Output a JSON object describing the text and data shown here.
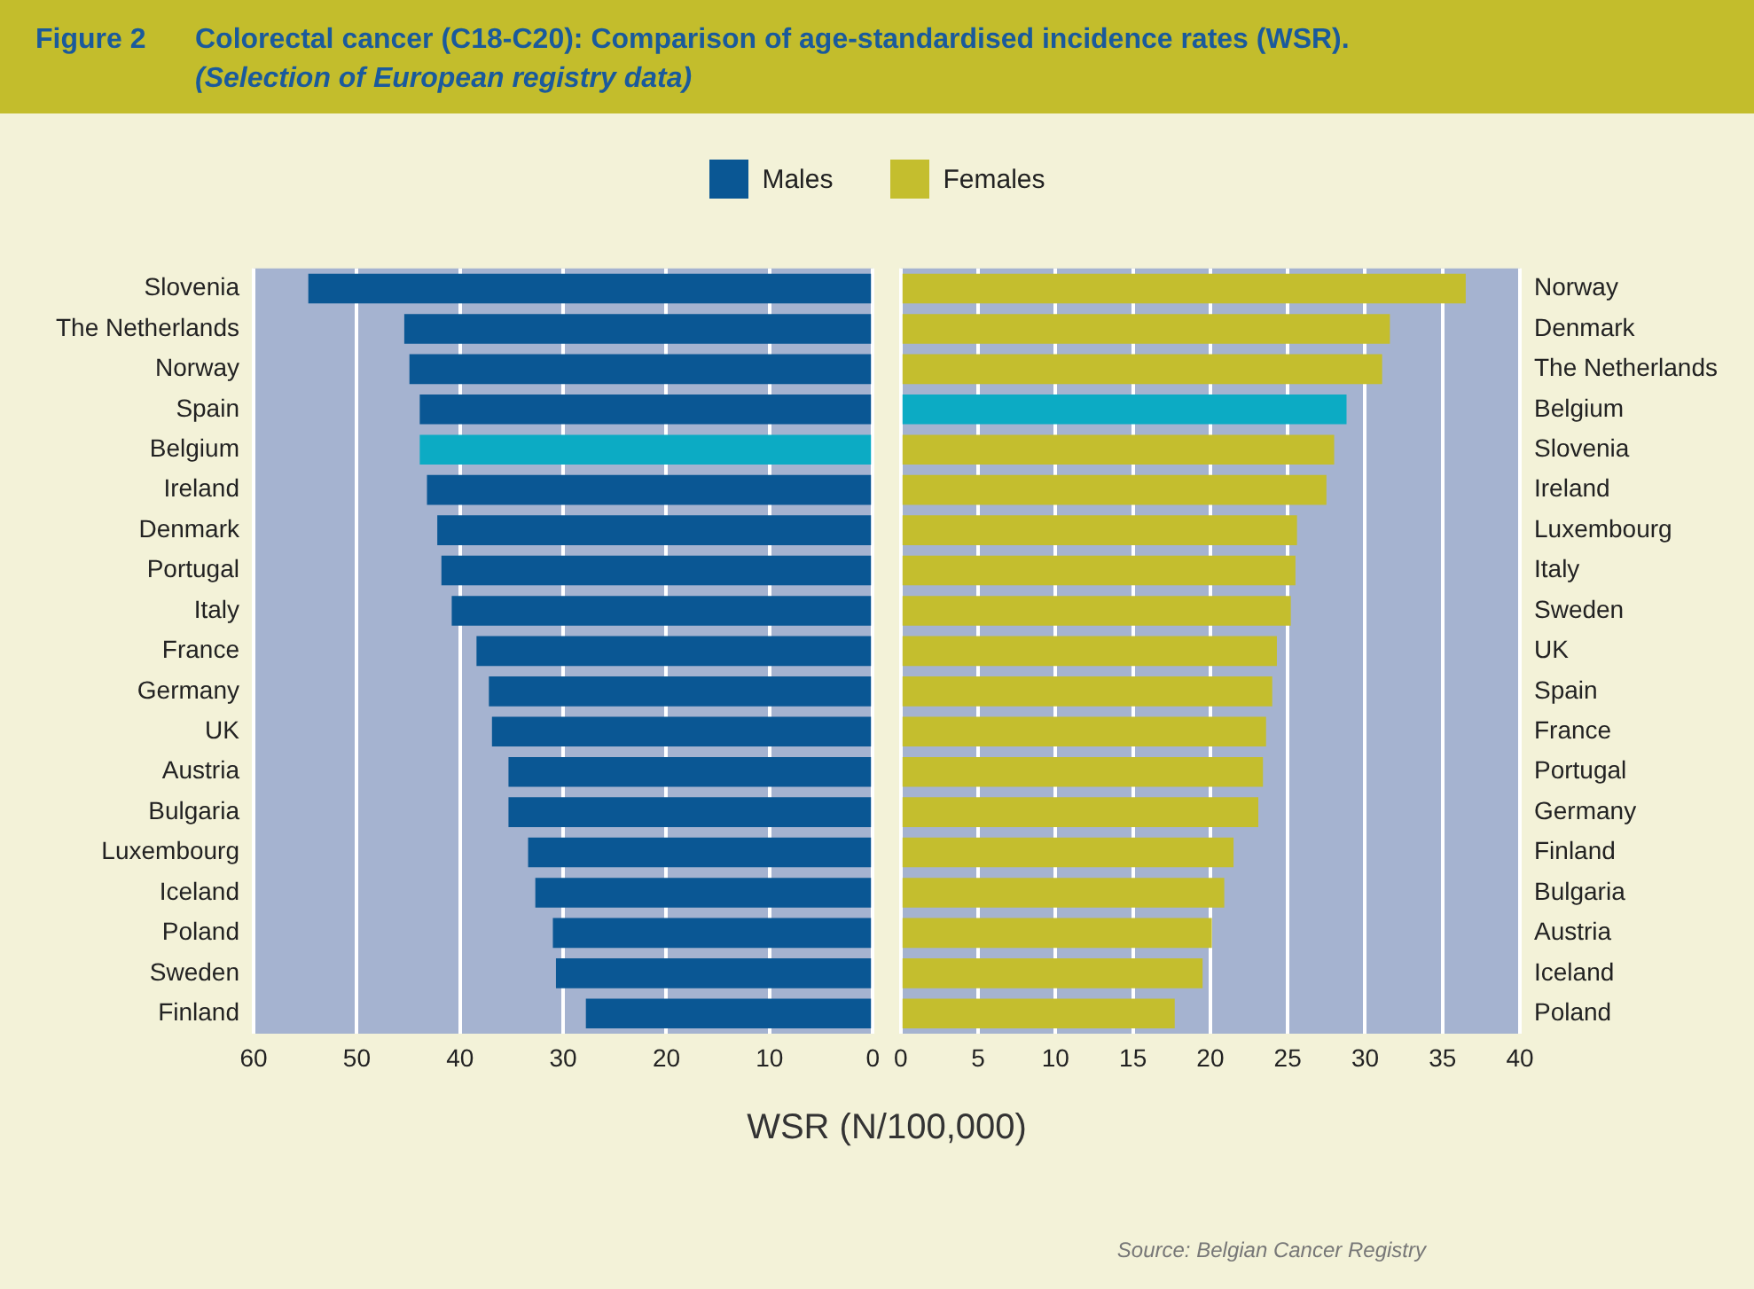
{
  "chart_data": [
    {
      "type": "bar",
      "orientation": "horizontal",
      "title": "Colorectal cancer (C18-C20): Comparison of age-standardised incidence rates (WSR).",
      "subtitle": "(Selection of European registry data)",
      "xlabel": "WSR (N/100,000)",
      "annotations": [
        "Figure 2",
        "Source: Belgian Cancer Registry"
      ],
      "categories": [
        "Slovenia",
        "The Netherlands",
        "Norway",
        "Spain",
        "Belgium",
        "Ireland",
        "Denmark",
        "Portugal",
        "Italy",
        "France",
        "Germany",
        "UK",
        "Austria",
        "Bulgaria",
        "Luxembourg",
        "Iceland",
        "Poland",
        "Sweden",
        "Finland"
      ],
      "series": [
        {
          "name": "Males",
          "color": "#0a5794",
          "colors": [
            "#0a5794",
            "#0a5794",
            "#0a5794",
            "#0a5794",
            "#0cabc4",
            "#0a5794",
            "#0a5794",
            "#0a5794",
            "#0a5794",
            "#0a5794",
            "#0a5794",
            "#0a5794",
            "#0a5794",
            "#0a5794",
            "#0a5794",
            "#0a5794",
            "#0a5794",
            "#0a5794",
            "#0a5794"
          ],
          "values": [
            54.7,
            45.4,
            44.9,
            43.9,
            43.9,
            43.2,
            42.2,
            41.8,
            40.8,
            38.4,
            37.2,
            36.9,
            35.3,
            35.3,
            33.4,
            32.7,
            31.0,
            30.7,
            27.8
          ]
        }
      ],
      "xlim": [
        60,
        0
      ],
      "xticks": [
        60,
        50,
        40,
        30,
        20,
        10,
        0
      ],
      "grid": "x",
      "legend": "top"
    },
    {
      "type": "bar",
      "orientation": "horizontal",
      "categories": [
        "Norway",
        "Denmark",
        "The Netherlands",
        "Belgium",
        "Slovenia",
        "Ireland",
        "Luxembourg",
        "Italy",
        "Sweden",
        "UK",
        "Spain",
        "France",
        "Portugal",
        "Germany",
        "Finland",
        "Bulgaria",
        "Austria",
        "Iceland",
        "Poland"
      ],
      "series": [
        {
          "name": "Females",
          "color": "#c4be2e",
          "colors": [
            "#c4be2e",
            "#c4be2e",
            "#c4be2e",
            "#0cabc4",
            "#c4be2e",
            "#c4be2e",
            "#c4be2e",
            "#c4be2e",
            "#c4be2e",
            "#c4be2e",
            "#c4be2e",
            "#c4be2e",
            "#c4be2e",
            "#c4be2e",
            "#c4be2e",
            "#c4be2e",
            "#c4be2e",
            "#c4be2e",
            "#c4be2e"
          ],
          "values": [
            36.5,
            31.6,
            31.1,
            28.8,
            28.0,
            27.5,
            25.6,
            25.5,
            25.2,
            24.3,
            24.0,
            23.6,
            23.4,
            23.1,
            21.5,
            20.9,
            20.1,
            19.5,
            17.7
          ]
        }
      ],
      "xlim": [
        0,
        40
      ],
      "xticks": [
        0,
        5,
        10,
        15,
        20,
        25,
        30,
        35,
        40
      ],
      "grid": "x",
      "legend": "top"
    }
  ]
}
